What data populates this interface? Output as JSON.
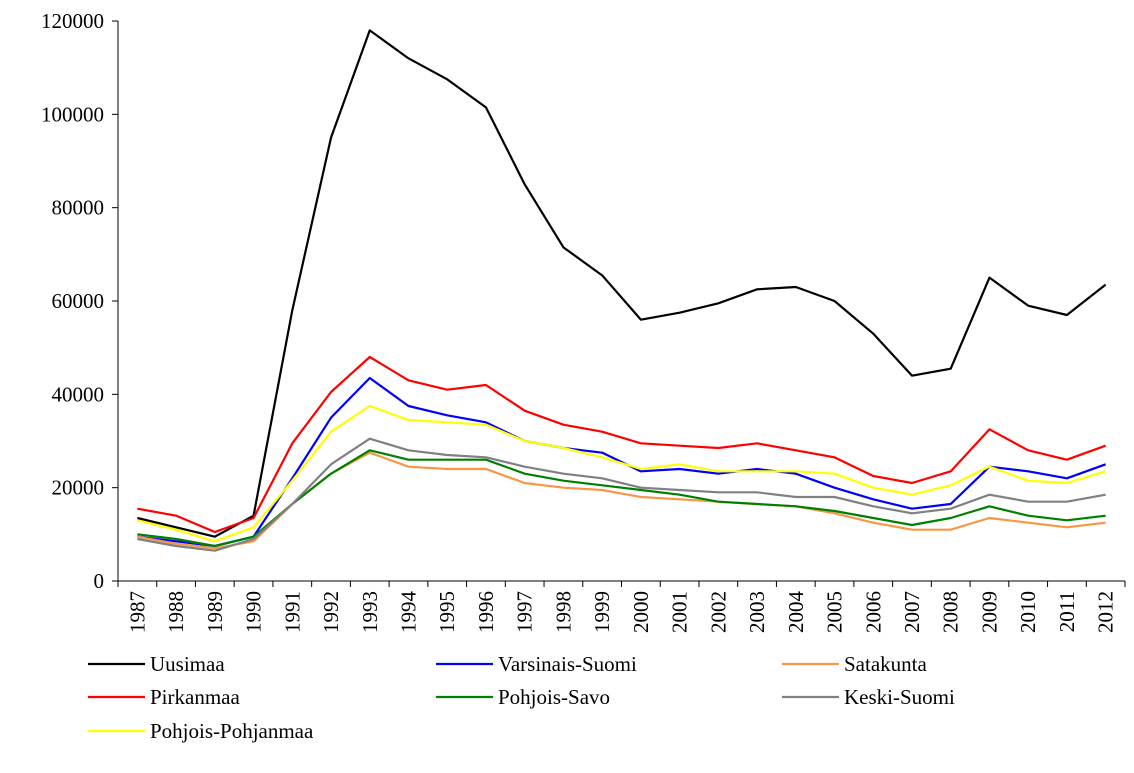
{
  "chart_data": {
    "type": "line",
    "categories": [
      "1987",
      "1988",
      "1989",
      "1990",
      "1991",
      "1992",
      "1993",
      "1994",
      "1995",
      "1996",
      "1997",
      "1998",
      "1999",
      "2000",
      "2001",
      "2002",
      "2003",
      "2004",
      "2005",
      "2006",
      "2007",
      "2008",
      "2009",
      "2010",
      "2011",
      "2012"
    ],
    "series": [
      {
        "name": "Uusimaa",
        "color": "#000000",
        "values": [
          13500,
          11500,
          9500,
          14000,
          58000,
          95000,
          118000,
          112000,
          107500,
          101500,
          85000,
          71500,
          65500,
          56000,
          57500,
          59500,
          62500,
          63000,
          60000,
          53000,
          44000,
          45500,
          65000,
          59000,
          57000,
          63500
        ]
      },
      {
        "name": "Varsinais-Suomi",
        "color": "#0000ff",
        "values": [
          9500,
          8500,
          7500,
          9500,
          22000,
          35000,
          43500,
          37500,
          35500,
          34000,
          30000,
          28500,
          27500,
          23500,
          24000,
          23000,
          24000,
          23000,
          20000,
          17500,
          15500,
          16500,
          24500,
          23500,
          22000,
          25000
        ]
      },
      {
        "name": "Satakunta",
        "color": "#f79646",
        "values": [
          9500,
          8000,
          7000,
          8500,
          16500,
          23000,
          27500,
          24500,
          24000,
          24000,
          21000,
          20000,
          19500,
          18000,
          17500,
          17000,
          16500,
          16000,
          14500,
          12500,
          11000,
          11000,
          13500,
          12500,
          11500,
          12500
        ]
      },
      {
        "name": "Pirkanmaa",
        "color": "#ff0000",
        "values": [
          15500,
          14000,
          10500,
          13500,
          29500,
          40500,
          48000,
          43000,
          41000,
          42000,
          36500,
          33500,
          32000,
          29500,
          29000,
          28500,
          29500,
          28000,
          26500,
          22500,
          21000,
          23500,
          32500,
          28000,
          26000,
          29000
        ]
      },
      {
        "name": "Pohjois-Savo",
        "color": "#008000",
        "values": [
          10000,
          9000,
          7500,
          9500,
          16500,
          23000,
          28000,
          26000,
          26000,
          26000,
          23000,
          21500,
          20500,
          19500,
          18500,
          17000,
          16500,
          16000,
          15000,
          13500,
          12000,
          13500,
          16000,
          14000,
          13000,
          14000
        ]
      },
      {
        "name": "Keski-Suomi",
        "color": "#808080",
        "values": [
          9000,
          7500,
          6500,
          9000,
          16500,
          25000,
          30500,
          28000,
          27000,
          26500,
          24500,
          23000,
          22000,
          20000,
          19500,
          19000,
          19000,
          18000,
          18000,
          16000,
          14500,
          15500,
          18500,
          17000,
          17000,
          18500
        ]
      },
      {
        "name": "Pohjois-Pohjanmaa",
        "color": "#ffff00",
        "values": [
          13000,
          11000,
          8500,
          11500,
          21500,
          32000,
          37500,
          34500,
          34000,
          33500,
          30000,
          28500,
          26500,
          24000,
          25000,
          23500,
          23500,
          23500,
          23000,
          20000,
          18500,
          20500,
          24500,
          21500,
          21000,
          23500
        ]
      }
    ],
    "ylim": [
      0,
      120000
    ],
    "yticks": [
      0,
      20000,
      40000,
      60000,
      80000,
      100000,
      120000
    ],
    "legend": "bottom"
  }
}
